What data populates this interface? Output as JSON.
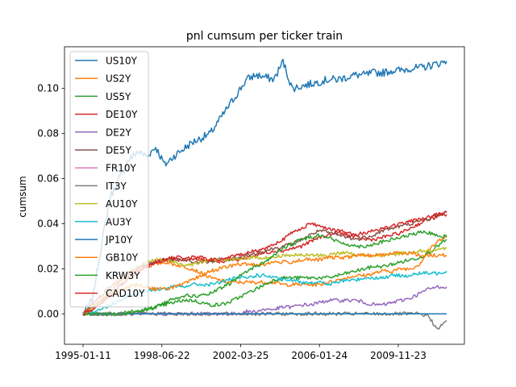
{
  "chart_data": {
    "type": "line",
    "title": "pnl cumsum per ticker train",
    "xlabel": "",
    "ylabel": "cumsum",
    "x_ticks": [
      "1995-01-11",
      "1998-06-22",
      "2002-03-25",
      "2006-01-24",
      "2009-11-23"
    ],
    "y_ticks": [
      "0.00",
      "0.02",
      "0.04",
      "0.06",
      "0.08",
      "0.10"
    ],
    "ylim": [
      -0.0135,
      0.1185
    ],
    "grid": false,
    "legend_position": "upper-left",
    "series": [
      {
        "name": "US10Y",
        "color": "#1f77b4",
        "values": [
          0.0,
          0.006,
          0.03,
          0.052,
          0.06,
          0.068,
          0.072,
          0.07,
          0.074,
          0.066,
          0.07,
          0.073,
          0.076,
          0.078,
          0.08,
          0.086,
          0.092,
          0.098,
          0.104,
          0.106,
          0.105,
          0.104,
          0.112,
          0.1,
          0.101,
          0.102,
          0.103,
          0.104,
          0.104,
          0.105,
          0.106,
          0.106,
          0.107,
          0.107,
          0.108,
          0.108,
          0.109,
          0.109,
          0.11,
          0.111,
          0.112
        ]
      },
      {
        "name": "US2Y",
        "color": "#ff7f0e",
        "values": [
          0.0,
          0.003,
          0.006,
          0.008,
          0.012,
          0.016,
          0.019,
          0.021,
          0.022,
          0.023,
          0.022,
          0.021,
          0.02,
          0.018,
          0.016,
          0.015,
          0.014,
          0.014,
          0.014,
          0.014,
          0.014,
          0.014,
          0.013,
          0.013,
          0.013,
          0.013,
          0.013,
          0.014,
          0.015,
          0.016,
          0.017,
          0.017,
          0.018,
          0.019,
          0.019,
          0.02,
          0.02,
          0.022,
          0.028,
          0.032,
          0.035
        ]
      },
      {
        "name": "US5Y",
        "color": "#2ca02c",
        "values": [
          0.0,
          0.0,
          0.0,
          0.0,
          0.0,
          0.001,
          0.001,
          0.002,
          0.003,
          0.004,
          0.005,
          0.006,
          0.006,
          0.005,
          0.004,
          0.004,
          0.005,
          0.007,
          0.009,
          0.011,
          0.013,
          0.015,
          0.016,
          0.016,
          0.016,
          0.016,
          0.016,
          0.016,
          0.017,
          0.018,
          0.019,
          0.02,
          0.021,
          0.021,
          0.022,
          0.023,
          0.024,
          0.025,
          0.027,
          0.03,
          0.033
        ]
      },
      {
        "name": "DE10Y",
        "color": "#d62728",
        "values": [
          0.0,
          0.004,
          0.008,
          0.012,
          0.015,
          0.018,
          0.02,
          0.022,
          0.023,
          0.024,
          0.024,
          0.024,
          0.024,
          0.024,
          0.024,
          0.023,
          0.024,
          0.024,
          0.025,
          0.026,
          0.027,
          0.028,
          0.028,
          0.029,
          0.03,
          0.032,
          0.034,
          0.035,
          0.036,
          0.035,
          0.034,
          0.033,
          0.033,
          0.034,
          0.035,
          0.036,
          0.038,
          0.04,
          0.042,
          0.043,
          0.044
        ]
      },
      {
        "name": "DE2Y",
        "color": "#9467bd",
        "values": [
          0.0,
          0.0,
          0.0,
          0.0,
          0.0,
          0.0,
          0.0,
          0.0,
          0.0,
          0.0,
          0.0,
          0.0,
          0.0,
          0.0,
          0.0,
          0.0,
          0.0,
          0.0,
          0.001,
          0.001,
          0.002,
          0.002,
          0.003,
          0.003,
          0.004,
          0.004,
          0.005,
          0.006,
          0.006,
          0.006,
          0.006,
          0.005,
          0.004,
          0.004,
          0.005,
          0.006,
          0.007,
          0.009,
          0.011,
          0.012,
          0.012
        ]
      },
      {
        "name": "DE5Y",
        "color": "#8c564b",
        "values": [
          0.0,
          0.003,
          0.006,
          0.01,
          0.014,
          0.018,
          0.02,
          0.022,
          0.023,
          0.024,
          0.024,
          0.024,
          0.023,
          0.023,
          0.023,
          0.024,
          0.024,
          0.025,
          0.026,
          0.027,
          0.028,
          0.029,
          0.03,
          0.031,
          0.033,
          0.035,
          0.037,
          0.036,
          0.035,
          0.034,
          0.033,
          0.034,
          0.035,
          0.037,
          0.038,
          0.039,
          0.04,
          0.041,
          0.042,
          0.044,
          0.045
        ]
      },
      {
        "name": "FR10Y",
        "color": "#e377c2",
        "values": [
          0.0,
          0.0,
          0.0,
          0.0,
          0.0,
          0.0,
          0.0,
          0.0,
          0.0,
          0.0,
          0.0,
          0.0,
          0.0,
          0.0,
          0.0,
          0.0,
          0.0,
          0.0,
          0.0,
          0.0,
          0.0,
          0.0,
          0.0,
          0.0,
          0.0,
          0.0,
          0.0,
          0.0,
          0.0,
          0.0,
          0.0,
          0.0,
          0.0,
          0.0,
          0.0,
          0.0,
          0.0,
          0.0,
          0.0,
          0.0,
          0.0
        ]
      },
      {
        "name": "IT3Y",
        "color": "#7f7f7f",
        "values": [
          0.0,
          0.0,
          0.0,
          0.0,
          0.0,
          0.0,
          0.0,
          0.0,
          0.0,
          0.0,
          0.0,
          0.0,
          0.0,
          0.0,
          0.0,
          0.0,
          0.0,
          0.0,
          0.0,
          0.0,
          0.0,
          0.0,
          0.0,
          0.0,
          0.0,
          0.0,
          0.0,
          0.0,
          0.0,
          0.0,
          0.0,
          0.0,
          0.0,
          0.0,
          0.0,
          0.0,
          0.0,
          0.0,
          -0.001,
          -0.007,
          -0.003
        ]
      },
      {
        "name": "AU10Y",
        "color": "#bcbd22",
        "values": [
          0.0,
          0.003,
          0.007,
          0.011,
          0.015,
          0.019,
          0.021,
          0.023,
          0.024,
          0.024,
          0.023,
          0.022,
          0.022,
          0.023,
          0.024,
          0.024,
          0.024,
          0.024,
          0.025,
          0.025,
          0.025,
          0.025,
          0.026,
          0.026,
          0.026,
          0.026,
          0.026,
          0.026,
          0.027,
          0.027,
          0.026,
          0.026,
          0.026,
          0.026,
          0.026,
          0.027,
          0.027,
          0.028,
          0.028,
          0.028,
          0.029
        ]
      },
      {
        "name": "AU3Y",
        "color": "#17becf",
        "values": [
          0.0,
          0.001,
          0.002,
          0.004,
          0.006,
          0.008,
          0.009,
          0.01,
          0.011,
          0.011,
          0.012,
          0.012,
          0.013,
          0.013,
          0.013,
          0.014,
          0.015,
          0.016,
          0.016,
          0.017,
          0.017,
          0.016,
          0.015,
          0.015,
          0.014,
          0.014,
          0.014,
          0.013,
          0.014,
          0.015,
          0.015,
          0.016,
          0.016,
          0.016,
          0.017,
          0.017,
          0.017,
          0.018,
          0.018,
          0.018,
          0.019
        ]
      },
      {
        "name": "JP10Y",
        "color": "#1f77b4",
        "values": [
          0.0,
          0.0,
          0.0,
          0.0,
          0.0,
          0.0,
          0.0,
          0.0,
          0.0,
          0.0,
          0.0,
          0.0,
          0.0,
          0.0,
          0.0,
          0.0,
          0.0,
          0.0,
          0.0,
          0.0,
          0.0,
          0.0,
          0.0,
          0.0,
          0.0,
          0.0,
          0.0,
          0.0,
          0.0,
          0.0,
          0.0,
          0.0,
          0.0,
          0.0,
          0.0,
          0.0,
          0.0,
          0.0,
          0.0,
          0.0,
          0.0
        ]
      },
      {
        "name": "GB10Y",
        "color": "#ff7f0e",
        "values": [
          0.0,
          0.002,
          0.005,
          0.008,
          0.01,
          0.012,
          0.013,
          0.012,
          0.011,
          0.011,
          0.012,
          0.013,
          0.015,
          0.017,
          0.019,
          0.02,
          0.021,
          0.022,
          0.022,
          0.022,
          0.022,
          0.023,
          0.023,
          0.023,
          0.024,
          0.024,
          0.024,
          0.025,
          0.025,
          0.025,
          0.026,
          0.026,
          0.026,
          0.026,
          0.027,
          0.027,
          0.027,
          0.026,
          0.026,
          0.026,
          0.026
        ]
      },
      {
        "name": "KRW3Y",
        "color": "#2ca02c",
        "values": [
          0.0,
          0.0,
          0.0,
          0.0,
          0.0,
          0.0,
          0.001,
          0.002,
          0.003,
          0.005,
          0.007,
          0.008,
          0.008,
          0.008,
          0.009,
          0.011,
          0.013,
          0.016,
          0.019,
          0.021,
          0.023,
          0.026,
          0.029,
          0.031,
          0.033,
          0.034,
          0.035,
          0.034,
          0.032,
          0.031,
          0.03,
          0.03,
          0.031,
          0.032,
          0.033,
          0.034,
          0.035,
          0.036,
          0.036,
          0.035,
          0.034
        ]
      },
      {
        "name": "CAD10Y",
        "color": "#d62728",
        "values": [
          0.0,
          0.002,
          0.005,
          0.008,
          0.012,
          0.016,
          0.019,
          0.021,
          0.023,
          0.024,
          0.025,
          0.025,
          0.025,
          0.025,
          0.024,
          0.024,
          0.025,
          0.026,
          0.027,
          0.028,
          0.029,
          0.031,
          0.033,
          0.036,
          0.038,
          0.04,
          0.039,
          0.038,
          0.037,
          0.036,
          0.035,
          0.036,
          0.037,
          0.038,
          0.039,
          0.04,
          0.041,
          0.042,
          0.043,
          0.044,
          0.045
        ]
      }
    ]
  }
}
